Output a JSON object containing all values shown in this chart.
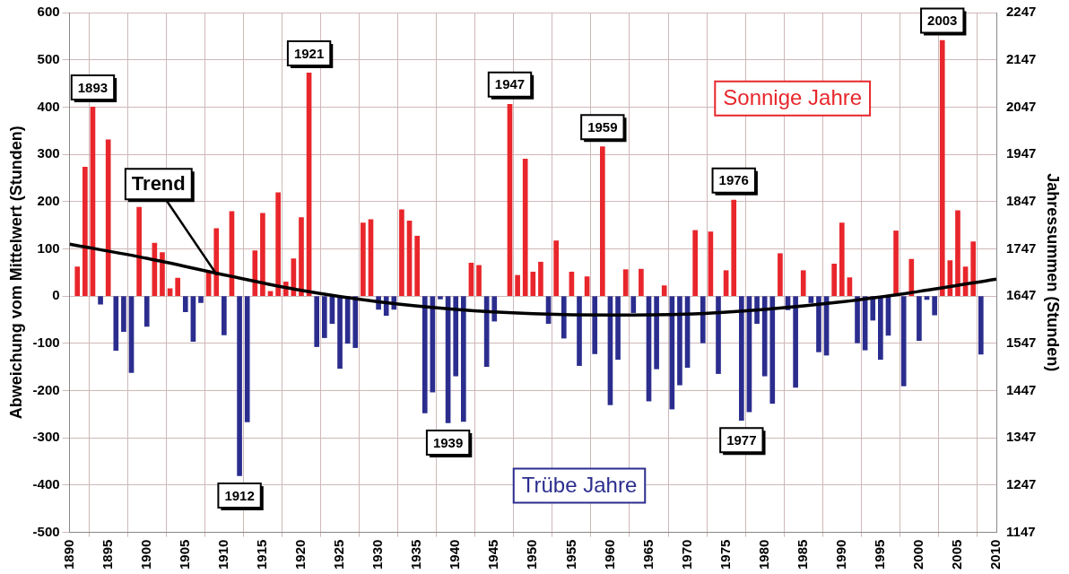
{
  "chart_data": {
    "type": "bar",
    "ylabel": "Abweichung vom Mittelwert (Stunden)",
    "y2label": "Jahressummen (Stunden)",
    "xlim": [
      1890,
      2010
    ],
    "xticks": [
      1890,
      1895,
      1900,
      1905,
      1910,
      1915,
      1920,
      1925,
      1930,
      1935,
      1940,
      1945,
      1950,
      1955,
      1960,
      1965,
      1970,
      1975,
      1980,
      1985,
      1990,
      1995,
      2000,
      2005,
      2010
    ],
    "ylim": [
      -500,
      600
    ],
    "yticks": [
      -500,
      -400,
      -300,
      -200,
      -100,
      0,
      100,
      200,
      300,
      400,
      500,
      600
    ],
    "y2lim": [
      1147,
      2247
    ],
    "y2ticks": [
      1147,
      1247,
      1347,
      1447,
      1547,
      1647,
      1747,
      1847,
      1947,
      2047,
      2147,
      2247
    ],
    "grid": true,
    "legend": false,
    "series": [
      {
        "name": "Sonnige Jahre",
        "color": "#e8262b",
        "x": [
          1891,
          1892,
          1893,
          1895,
          1899,
          1901,
          1902,
          1903,
          1904,
          1908,
          1909,
          1911,
          1914,
          1915,
          1916,
          1917,
          1918,
          1919,
          1920,
          1921,
          1928,
          1929,
          1933,
          1934,
          1935,
          1942,
          1943,
          1947,
          1948,
          1949,
          1950,
          1951,
          1953,
          1955,
          1957,
          1959,
          1962,
          1964,
          1967,
          1971,
          1973,
          1975,
          1976,
          1982,
          1985,
          1989,
          1990,
          1991,
          1997,
          1999,
          2003,
          2004,
          2005,
          2006,
          2007
        ],
        "values": [
          62,
          273,
          400,
          331,
          188,
          112,
          92,
          16,
          38,
          49,
          143,
          179,
          96,
          175,
          10,
          219,
          30,
          79,
          166,
          472,
          155,
          162,
          183,
          159,
          127,
          70,
          65,
          406,
          44,
          290,
          51,
          72,
          117,
          51,
          41,
          316,
          56,
          57,
          22,
          139,
          136,
          54,
          203,
          90,
          54,
          68,
          155,
          39,
          138,
          78,
          541,
          75,
          181,
          62,
          115
        ]
      },
      {
        "name": "Trübe Jahre",
        "color": "#2b2d8e",
        "x": [
          1894,
          1896,
          1897,
          1898,
          1900,
          1905,
          1906,
          1907,
          1910,
          1912,
          1913,
          1922,
          1923,
          1924,
          1925,
          1926,
          1927,
          1930,
          1931,
          1932,
          1936,
          1937,
          1938,
          1939,
          1940,
          1941,
          1944,
          1945,
          1952,
          1954,
          1956,
          1958,
          1960,
          1961,
          1963,
          1965,
          1966,
          1968,
          1969,
          1970,
          1972,
          1974,
          1977,
          1978,
          1979,
          1980,
          1981,
          1983,
          1984,
          1986,
          1987,
          1988,
          1992,
          1993,
          1994,
          1995,
          1996,
          1998,
          2000,
          2001,
          2002,
          2008
        ],
        "values": [
          -17,
          -115,
          -75,
          -162,
          -64,
          -33,
          -96,
          -14,
          -82,
          -380,
          -266,
          -107,
          -88,
          -58,
          -153,
          -100,
          -109,
          -28,
          -41,
          -28,
          -247,
          -203,
          -6,
          -268,
          -169,
          -265,
          -149,
          -53,
          -58,
          -89,
          -147,
          -122,
          -230,
          -134,
          -35,
          -222,
          -154,
          -239,
          -188,
          -151,
          -99,
          -164,
          -263,
          -245,
          -58,
          -169,
          -227,
          -29,
          -193,
          -14,
          -118,
          -125,
          -99,
          -114,
          -51,
          -134,
          -83,
          -190,
          -94,
          -7,
          -40,
          -123
        ]
      },
      {
        "type": "line",
        "name": "Trend",
        "color": "#000000",
        "x": [
          1890,
          1900,
          1910,
          1920,
          1930,
          1940,
          1950,
          1960,
          1970,
          1980,
          1990,
          2000,
          2010
        ],
        "values": [
          110,
          80,
          45,
          12,
          -12,
          -28,
          -37,
          -40,
          -38,
          -28,
          -12,
          10,
          36
        ]
      }
    ],
    "annotations": [
      {
        "text": "1893",
        "x": 1893,
        "y": 400
      },
      {
        "text": "1912",
        "x": 1912,
        "y": -380
      },
      {
        "text": "1921",
        "x": 1921,
        "y": 472
      },
      {
        "text": "1939",
        "x": 1939,
        "y": -268
      },
      {
        "text": "1947",
        "x": 1947,
        "y": 406
      },
      {
        "text": "1959",
        "x": 1959,
        "y": 316
      },
      {
        "text": "1976",
        "x": 1976,
        "y": 203
      },
      {
        "text": "1977",
        "x": 1977,
        "y": -263
      },
      {
        "text": "2003",
        "x": 2003,
        "y": 541
      }
    ]
  }
}
